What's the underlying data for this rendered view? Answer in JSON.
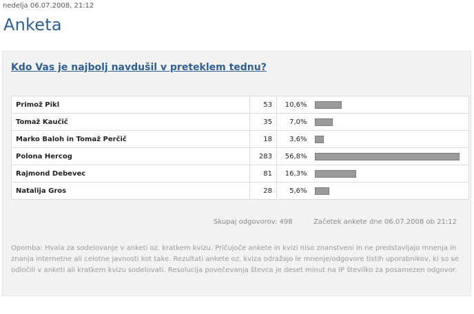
{
  "header": {
    "date": "nedelja 06.07.2008, 21:12",
    "title": "Anketa"
  },
  "poll": {
    "question": "Kdo Vas je najbolj navdušil v preteklem tednu?",
    "rows": [
      {
        "name": "Primož Pikl",
        "votes": "53",
        "percent": "10,6%",
        "share": 0.106
      },
      {
        "name": "Tomaž Kaučič",
        "votes": "35",
        "percent": "7,0%",
        "share": 0.07
      },
      {
        "name": "Marko Baloh in Tomaž Perčič",
        "votes": "18",
        "percent": "3,6%",
        "share": 0.036
      },
      {
        "name": "Polona Hercog",
        "votes": "283",
        "percent": "56,8%",
        "share": 0.568
      },
      {
        "name": "Rajmond Debevec",
        "votes": "81",
        "percent": "16,3%",
        "share": 0.163
      },
      {
        "name": "Natalija Gros",
        "votes": "28",
        "percent": "5,6%",
        "share": 0.056
      }
    ],
    "total_votes": "Skupaj odgovorov: 498",
    "start_info": "Začetek ankete dne 06.07.2008 ob 21:12",
    "note": "Opomba: Hvala za sodelovanje v anketi oz. kratkem kvizu. Pričujoče ankete in kvizi niso znanstveni in ne predstavljajo mnenja in znanja internetne ali celotne javnosti kot take. Rezultati ankete oz. kviza odražajo le mnenje/odgovore tistih uporabnikov, ki so se odločili v anketi ali kratkem kvizu sodelovati. Resolucija povečevanja števca je deset minut na IP številko za posamezen odgovor."
  },
  "colors": {
    "title": "#2f5f8f",
    "bar": "#9a9a9a",
    "panel": "#f2f2f2"
  }
}
